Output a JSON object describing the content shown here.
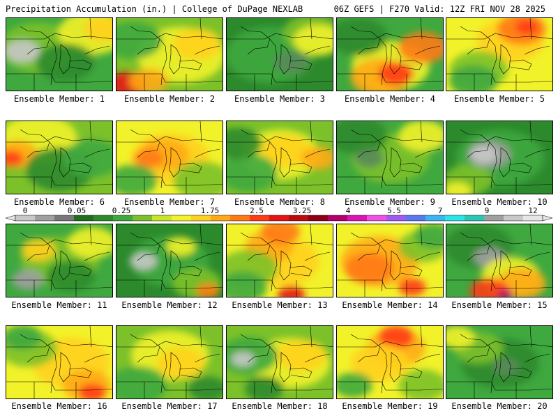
{
  "header": {
    "left": "Precipitation Accumulation (in.) | College of DuPage NEXLAB",
    "right": "06Z GEFS | F270 Valid: 12Z FRI NOV 28 2025"
  },
  "legend": {
    "tick_labels": [
      "0",
      "0.05",
      "0.25",
      "1",
      "1.75",
      "2.5",
      "3.25",
      "4",
      "5.5",
      "7",
      "9",
      "12"
    ],
    "colors": [
      "#c8c8c8",
      "#a0a0a0",
      "#787878",
      "#1e6e1e",
      "#2c8a2c",
      "#3fa83f",
      "#7cc12a",
      "#c8e628",
      "#f2f22a",
      "#ffd21e",
      "#ffaa14",
      "#ff7a14",
      "#ff3c14",
      "#e61414",
      "#be0a0a",
      "#8c0014",
      "#b4006e",
      "#dc14b4",
      "#f050e6",
      "#a05af0",
      "#5a78f0",
      "#3cb4f0",
      "#28e6e6",
      "#28c8b4",
      "#a0a0a0",
      "#c8c8c8",
      "#e6e6e6"
    ]
  },
  "members": [
    {
      "label": "Ensemble Member: 1",
      "base": "#3fa83f",
      "blobs": [
        [
          "#7cc12a",
          0.3,
          0.4,
          40
        ],
        [
          "#f2f22a",
          0.8,
          0.2,
          35
        ],
        [
          "#ffd21e",
          0.9,
          0.15,
          20
        ],
        [
          "#c8c8c8",
          0.15,
          0.45,
          18
        ],
        [
          "#2c8a2c",
          0.55,
          0.6,
          30
        ]
      ]
    },
    {
      "label": "Ensemble Member: 2",
      "base": "#7cc12a",
      "blobs": [
        [
          "#f2f22a",
          0.6,
          0.5,
          45
        ],
        [
          "#ffd21e",
          0.75,
          0.35,
          25
        ],
        [
          "#3fa83f",
          0.15,
          0.3,
          30
        ],
        [
          "#e61414",
          0.1,
          0.9,
          20
        ],
        [
          "#ffaa14",
          0.3,
          0.85,
          20
        ]
      ]
    },
    {
      "label": "Ensemble Member: 3",
      "base": "#2c8a2c",
      "blobs": [
        [
          "#3fa83f",
          0.4,
          0.5,
          45
        ],
        [
          "#7cc12a",
          0.8,
          0.2,
          30
        ],
        [
          "#f2f22a",
          0.85,
          0.3,
          25
        ],
        [
          "#5a8a5a",
          0.6,
          0.6,
          18
        ]
      ]
    },
    {
      "label": "Ensemble Member: 4",
      "base": "#3fa83f",
      "blobs": [
        [
          "#f2f22a",
          0.5,
          0.65,
          40
        ],
        [
          "#ffaa14",
          0.4,
          0.8,
          30
        ],
        [
          "#ff3c14",
          0.55,
          0.75,
          18
        ],
        [
          "#ff7a14",
          0.8,
          0.4,
          25
        ],
        [
          "#2c8a2c",
          0.2,
          0.25,
          30
        ]
      ]
    },
    {
      "label": "Ensemble Member: 5",
      "base": "#f2f22a",
      "blobs": [
        [
          "#ffd21e",
          0.6,
          0.3,
          35
        ],
        [
          "#ff7a14",
          0.7,
          0.15,
          25
        ],
        [
          "#ff3c14",
          0.75,
          0.12,
          12
        ],
        [
          "#7cc12a",
          0.3,
          0.7,
          30
        ],
        [
          "#3fa83f",
          0.25,
          0.85,
          25
        ]
      ]
    },
    {
      "label": "Ensemble Member: 6",
      "base": "#7cc12a",
      "blobs": [
        [
          "#f2f22a",
          0.3,
          0.25,
          40
        ],
        [
          "#ffaa14",
          0.1,
          0.45,
          22
        ],
        [
          "#ff3c14",
          0.05,
          0.5,
          12
        ],
        [
          "#2c8a2c",
          0.5,
          0.65,
          35
        ],
        [
          "#3fa83f",
          0.8,
          0.5,
          30
        ]
      ]
    },
    {
      "label": "Ensemble Member: 7",
      "base": "#f2f22a",
      "blobs": [
        [
          "#ffd21e",
          0.5,
          0.5,
          40
        ],
        [
          "#ffaa14",
          0.45,
          0.45,
          25
        ],
        [
          "#ff7a14",
          0.3,
          0.5,
          15
        ],
        [
          "#7cc12a",
          0.8,
          0.8,
          30
        ],
        [
          "#3fa83f",
          0.15,
          0.8,
          25
        ]
      ]
    },
    {
      "label": "Ensemble Member: 8",
      "base": "#7cc12a",
      "blobs": [
        [
          "#f2f22a",
          0.5,
          0.45,
          40
        ],
        [
          "#ffd21e",
          0.55,
          0.4,
          25
        ],
        [
          "#ffaa14",
          0.85,
          0.5,
          18
        ],
        [
          "#3fa83f",
          0.2,
          0.7,
          30
        ],
        [
          "#2c8a2c",
          0.1,
          0.3,
          25
        ]
      ]
    },
    {
      "label": "Ensemble Member: 9",
      "base": "#3fa83f",
      "blobs": [
        [
          "#7cc12a",
          0.5,
          0.5,
          40
        ],
        [
          "#2c8a2c",
          0.2,
          0.2,
          30
        ],
        [
          "#f2f22a",
          0.8,
          0.2,
          25
        ],
        [
          "#5a8a5a",
          0.3,
          0.5,
          15
        ]
      ]
    },
    {
      "label": "Ensemble Member: 10",
      "base": "#2c8a2c",
      "blobs": [
        [
          "#3fa83f",
          0.5,
          0.5,
          45
        ],
        [
          "#a0a0a0",
          0.4,
          0.45,
          22
        ],
        [
          "#c8c8c8",
          0.35,
          0.45,
          14
        ],
        [
          "#7cc12a",
          0.2,
          0.8,
          25
        ],
        [
          "#f2f22a",
          0.1,
          0.95,
          15
        ]
      ]
    },
    {
      "label": "Ensemble Member: 11",
      "base": "#3fa83f",
      "blobs": [
        [
          "#7cc12a",
          0.5,
          0.5,
          40
        ],
        [
          "#f2f22a",
          0.8,
          0.25,
          25
        ],
        [
          "#ffd21e",
          0.3,
          0.35,
          18
        ],
        [
          "#a0a0a0",
          0.2,
          0.75,
          16
        ],
        [
          "#2c8a2c",
          0.6,
          0.7,
          25
        ]
      ]
    },
    {
      "label": "Ensemble Member: 12",
      "base": "#2c8a2c",
      "blobs": [
        [
          "#3fa83f",
          0.5,
          0.5,
          40
        ],
        [
          "#c8c8c8",
          0.25,
          0.5,
          14
        ],
        [
          "#7cc12a",
          0.75,
          0.8,
          25
        ],
        [
          "#ff7a14",
          0.85,
          0.9,
          12
        ],
        [
          "#f2f22a",
          0.6,
          0.3,
          15
        ]
      ]
    },
    {
      "label": "Ensemble Member: 13",
      "base": "#f2f22a",
      "blobs": [
        [
          "#ffd21e",
          0.5,
          0.5,
          40
        ],
        [
          "#ffaa14",
          0.4,
          0.3,
          25
        ],
        [
          "#ff7a14",
          0.5,
          0.1,
          20
        ],
        [
          "#7cc12a",
          0.2,
          0.6,
          30
        ],
        [
          "#3fa83f",
          0.15,
          0.85,
          25
        ],
        [
          "#e61414",
          0.6,
          0.95,
          14
        ]
      ]
    },
    {
      "label": "Ensemble Member: 14",
      "base": "#f2f22a",
      "blobs": [
        [
          "#ffaa14",
          0.4,
          0.5,
          40
        ],
        [
          "#ff7a14",
          0.3,
          0.6,
          25
        ],
        [
          "#ff3c14",
          0.7,
          0.85,
          14
        ],
        [
          "#7cc12a",
          0.8,
          0.3,
          25
        ],
        [
          "#3fa83f",
          0.9,
          0.15,
          20
        ]
      ]
    },
    {
      "label": "Ensemble Member: 15",
      "base": "#3fa83f",
      "blobs": [
        [
          "#2c8a2c",
          0.3,
          0.3,
          35
        ],
        [
          "#a0a0a0",
          0.4,
          0.45,
          16
        ],
        [
          "#f2f22a",
          0.6,
          0.7,
          30
        ],
        [
          "#ffaa14",
          0.7,
          0.8,
          25
        ],
        [
          "#ff3c14",
          0.4,
          0.9,
          20
        ],
        [
          "#b4006e",
          0.55,
          0.95,
          8
        ]
      ]
    },
    {
      "label": "Ensemble Member: 16",
      "base": "#f2f22a",
      "blobs": [
        [
          "#ffd21e",
          0.6,
          0.5,
          40
        ],
        [
          "#ffaa14",
          0.75,
          0.8,
          25
        ],
        [
          "#ff3c14",
          0.8,
          0.9,
          14
        ],
        [
          "#7cc12a",
          0.2,
          0.3,
          30
        ],
        [
          "#3fa83f",
          0.15,
          0.15,
          20
        ]
      ]
    },
    {
      "label": "Ensemble Member: 17",
      "base": "#7cc12a",
      "blobs": [
        [
          "#f2f22a",
          0.5,
          0.4,
          40
        ],
        [
          "#ffd21e",
          0.6,
          0.5,
          25
        ],
        [
          "#3fa83f",
          0.2,
          0.8,
          30
        ],
        [
          "#2c8a2c",
          0.85,
          0.85,
          20
        ]
      ]
    },
    {
      "label": "Ensemble Member: 18",
      "base": "#7cc12a",
      "blobs": [
        [
          "#f2f22a",
          0.6,
          0.5,
          40
        ],
        [
          "#ffd21e",
          0.7,
          0.4,
          25
        ],
        [
          "#3fa83f",
          0.2,
          0.4,
          30
        ],
        [
          "#c8c8c8",
          0.15,
          0.45,
          12
        ],
        [
          "#2c8a2c",
          0.35,
          0.85,
          20
        ]
      ]
    },
    {
      "label": "Ensemble Member: 19",
      "base": "#f2f22a",
      "blobs": [
        [
          "#ffaa14",
          0.55,
          0.3,
          30
        ],
        [
          "#ff3c14",
          0.55,
          0.15,
          18
        ],
        [
          "#ffd21e",
          0.4,
          0.5,
          30
        ],
        [
          "#7cc12a",
          0.8,
          0.8,
          25
        ],
        [
          "#3fa83f",
          0.15,
          0.8,
          20
        ]
      ]
    },
    {
      "label": "Ensemble Member: 20",
      "base": "#3fa83f",
      "blobs": [
        [
          "#2c8a2c",
          0.5,
          0.5,
          40
        ],
        [
          "#7cc12a",
          0.3,
          0.3,
          25
        ],
        [
          "#f2f22a",
          0.1,
          0.15,
          18
        ],
        [
          "#5a8a5a",
          0.55,
          0.55,
          14
        ]
      ]
    }
  ]
}
